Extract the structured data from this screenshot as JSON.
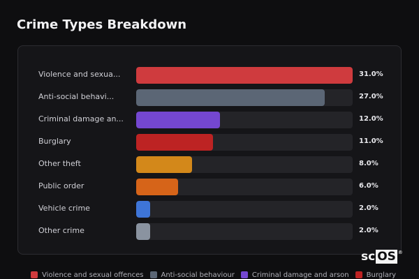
{
  "title": "Crime Types Breakdown",
  "chart_data": {
    "type": "bar",
    "orientation": "horizontal",
    "title": "Crime Types Breakdown",
    "xlim": [
      0,
      31
    ],
    "categories": [
      "Violence and sexua...",
      "Anti-social behavi...",
      "Criminal damage an...",
      "Burglary",
      "Other theft",
      "Public order",
      "Vehicle crime",
      "Other crime"
    ],
    "values": [
      31.0,
      27.0,
      12.0,
      11.0,
      8.0,
      6.0,
      2.0,
      2.0
    ],
    "value_labels": [
      "31.0%",
      "27.0%",
      "12.0%",
      "11.0%",
      "8.0%",
      "6.0%",
      "2.0%",
      "2.0%"
    ],
    "colors": [
      "#cf3b3e",
      "#5b6675",
      "#7447d0",
      "#bd2323",
      "#d3881a",
      "#d66419",
      "#3e75d8",
      "#8a93a0"
    ],
    "legend": {
      "placement": "bottom",
      "items": [
        {
          "label": "Violence and sexual offences",
          "color": "#cf3b3e"
        },
        {
          "label": "Anti-social behaviour",
          "color": "#5b6675"
        },
        {
          "label": "Criminal damage and arson",
          "color": "#7447d0"
        },
        {
          "label": "Burglary",
          "color": "#bd2323"
        }
      ]
    },
    "grid": false
  },
  "logo": {
    "text_left": "sc",
    "text_box": "OS",
    "mark": "®"
  }
}
